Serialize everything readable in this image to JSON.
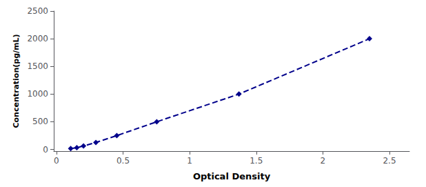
{
  "chart_data": {
    "type": "line",
    "xlabel": "Optical Density",
    "ylabel": "Concentration(pg/mL)",
    "x": [
      0.107,
      0.153,
      0.203,
      0.296,
      0.453,
      0.753,
      1.37,
      2.35
    ],
    "values": [
      15.6,
      31.2,
      62.5,
      125,
      250,
      500,
      1000,
      2000
    ],
    "color": "#00008B",
    "marker": "diamond",
    "line_style": "dashed",
    "xlim": [
      -0.02,
      2.65
    ],
    "ylim": [
      -30,
      2500
    ],
    "xticks": [
      0,
      0.5,
      1,
      1.5,
      2,
      2.5
    ],
    "yticks": [
      0,
      500,
      1000,
      1500,
      2000,
      2500
    ],
    "grid": false
  }
}
